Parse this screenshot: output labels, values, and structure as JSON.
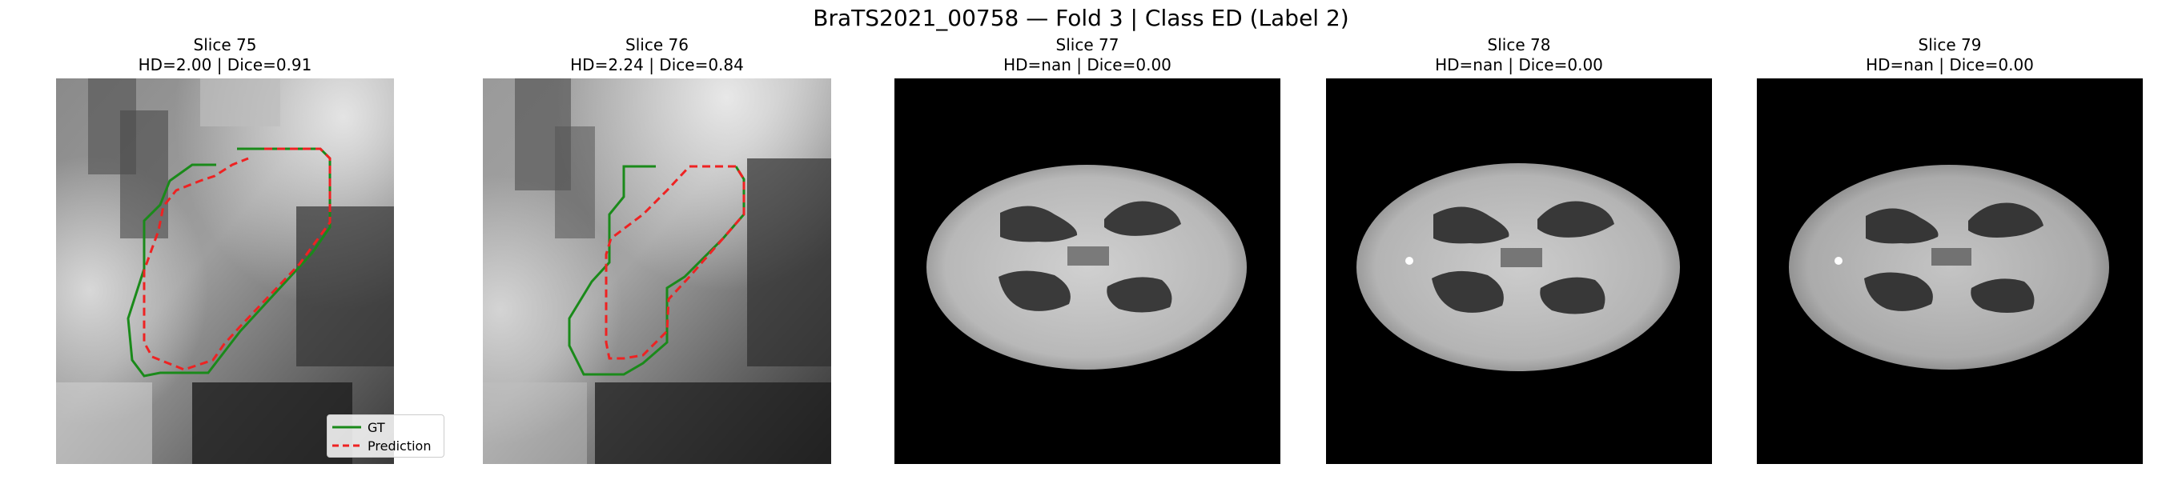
{
  "figure": {
    "title": "BraTS2021_00758 — Fold 3 | Class ED (Label 2)"
  },
  "panels": [
    {
      "title": "Slice 75",
      "metrics": "HD=2.00 | Dice=0.91"
    },
    {
      "title": "Slice 76",
      "metrics": "HD=2.24 | Dice=0.84"
    },
    {
      "title": "Slice 77",
      "metrics": "HD=nan | Dice=0.00"
    },
    {
      "title": "Slice 78",
      "metrics": "HD=nan | Dice=0.00"
    },
    {
      "title": "Slice 79",
      "metrics": "HD=nan | Dice=0.00"
    }
  ],
  "legend": {
    "gt_label": "GT",
    "prediction_label": "Prediction"
  },
  "colors": {
    "gt": "#1a8a1a",
    "prediction": "#ee2222"
  }
}
